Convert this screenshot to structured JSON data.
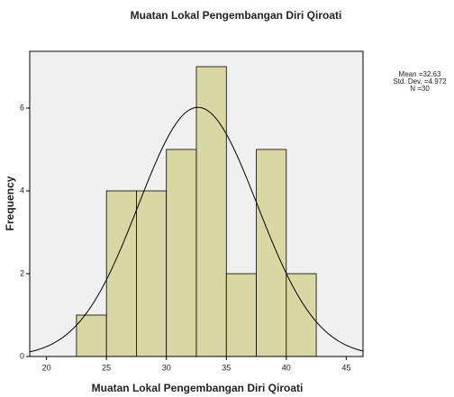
{
  "chart_data": {
    "type": "histogram",
    "title": "Muatan Lokal Pengembangan Diri Qiroati",
    "x_label": "Muatan Lokal Pengembangan Diri Qiroati",
    "y_label": "Frequency",
    "bins": [
      22.5,
      25,
      27.5,
      30,
      32.5,
      35,
      37.5,
      40,
      42.5
    ],
    "counts": [
      1,
      4,
      4,
      5,
      7,
      2,
      5,
      2
    ],
    "color": "#d9d7a3",
    "curve_color": "#000000",
    "stats": [
      {
        "value": 32.63,
        "label": "Mean =32.63"
      },
      {
        "value": 4.972,
        "label": "Std. Dev. =4.972"
      },
      {
        "value": 30,
        "label": "N =30"
      }
    ],
    "xlim": [
      18.6,
      46.4
    ],
    "xticks": [
      20,
      25,
      30,
      35,
      40,
      45
    ],
    "ylim": [
      0,
      7.37
    ],
    "yticks": [
      0,
      2,
      4,
      6
    ]
  }
}
